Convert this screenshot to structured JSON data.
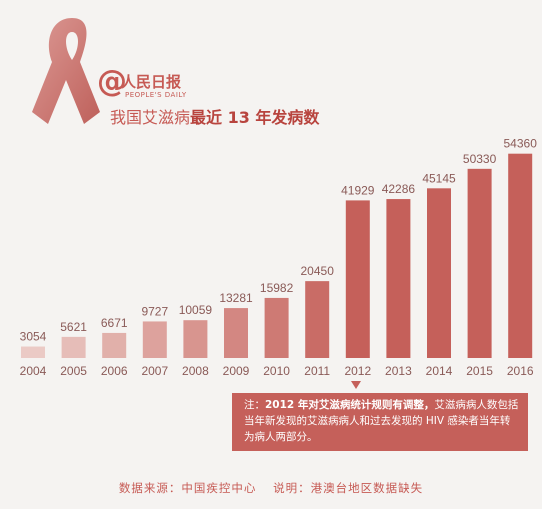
{
  "logo": {
    "name": "人民日报",
    "sub": "PEOPLE'S DAILY",
    "at": "@"
  },
  "title": {
    "normal": "我国艾滋病",
    "bold": "最近 13 年发病数"
  },
  "chart_data": {
    "type": "bar",
    "categories": [
      "2004",
      "2005",
      "2006",
      "2007",
      "2008",
      "2009",
      "2010",
      "2011",
      "2012",
      "2013",
      "2014",
      "2015",
      "2016"
    ],
    "values": [
      3054,
      5621,
      6671,
      9727,
      10059,
      13281,
      15982,
      20450,
      41929,
      42286,
      45145,
      50330,
      54360
    ],
    "ylim": [
      0,
      58000
    ]
  },
  "note": {
    "prefix": "注：",
    "bold": "2012 年对艾滋病统计规则有调整，",
    "text": "艾滋病病人数包括当年新发现的艾滋病病人和过去发现的 HIV 感染者当年转为病人两部分。"
  },
  "footer": {
    "source": "数据来源：中国疾控中心",
    "remark": "说明：港澳台地区数据缺失"
  },
  "colors": {
    "accent": "#c65a54",
    "bar_dark": "#c5605a",
    "bar_light": "#edd0cb"
  }
}
